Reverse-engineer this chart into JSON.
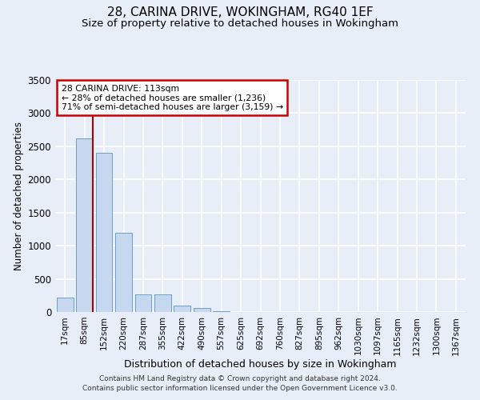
{
  "title1": "28, CARINA DRIVE, WOKINGHAM, RG40 1EF",
  "title2": "Size of property relative to detached houses in Wokingham",
  "xlabel": "Distribution of detached houses by size in Wokingham",
  "ylabel": "Number of detached properties",
  "bar_labels": [
    "17sqm",
    "85sqm",
    "152sqm",
    "220sqm",
    "287sqm",
    "355sqm",
    "422sqm",
    "490sqm",
    "557sqm",
    "625sqm",
    "692sqm",
    "760sqm",
    "827sqm",
    "895sqm",
    "962sqm",
    "1030sqm",
    "1097sqm",
    "1165sqm",
    "1232sqm",
    "1300sqm",
    "1367sqm"
  ],
  "bar_values": [
    220,
    2620,
    2400,
    1200,
    270,
    270,
    100,
    60,
    18,
    5,
    3,
    0,
    0,
    0,
    0,
    0,
    0,
    0,
    0,
    0,
    0
  ],
  "bar_color": "#c5d8ef",
  "bar_edge_color": "#6b9ec7",
  "ylim": [
    0,
    3500
  ],
  "yticks": [
    0,
    500,
    1000,
    1500,
    2000,
    2500,
    3000,
    3500
  ],
  "property_line_color": "#aa0000",
  "property_line_x": 1.425,
  "annotation_line1": "28 CARINA DRIVE: 113sqm",
  "annotation_line2": "← 28% of detached houses are smaller (1,236)",
  "annotation_line3": "71% of semi-detached houses are larger (3,159) →",
  "footnote1": "Contains HM Land Registry data © Crown copyright and database right 2024.",
  "footnote2": "Contains public sector information licensed under the Open Government Licence v3.0.",
  "bg_color": "#e8eef8",
  "grid_color": "#ffffff",
  "title1_fontsize": 11,
  "title2_fontsize": 9.5,
  "xlabel_fontsize": 9,
  "ylabel_fontsize": 8.5,
  "annot_fontsize": 7.8,
  "tick_fontsize": 7.5,
  "ytick_fontsize": 8.5
}
